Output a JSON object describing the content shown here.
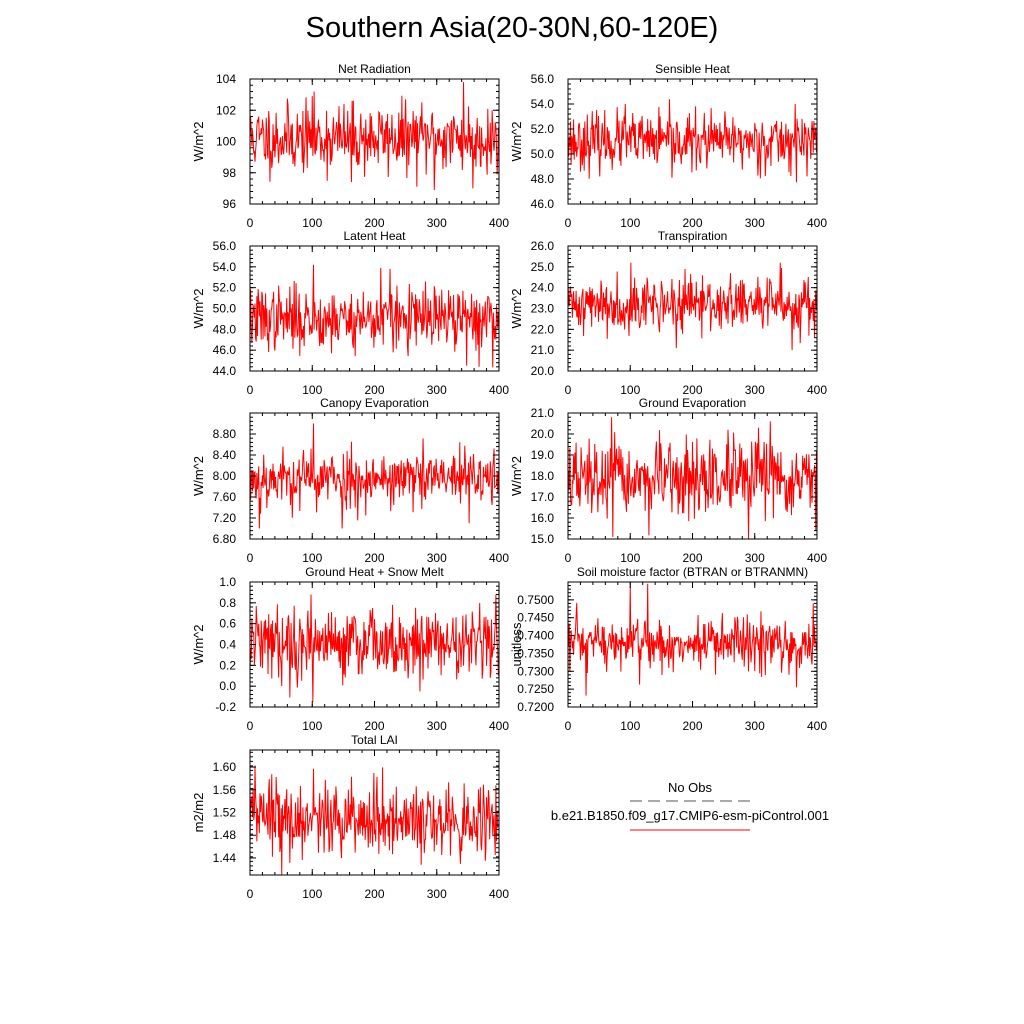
{
  "figure": {
    "title": "Southern Asia(20-30N,60-120E)",
    "legend": {
      "obs_label": "No Obs",
      "model_label": "b.e21.B1850.f09_g17.CMIP6-esm-piControl.001",
      "obs_color": "#555555",
      "model_color": "#ff0000"
    }
  },
  "chart_data": [
    {
      "type": "line",
      "title": "Net Radiation",
      "ylabel": "W/m^2",
      "xlim": [
        0,
        400
      ],
      "ylim": [
        96,
        104
      ],
      "yticks": [
        96,
        98,
        100,
        102,
        104
      ],
      "ytick_labels": [
        "96",
        "98",
        "100",
        "102",
        "104"
      ],
      "xticks": [
        0,
        100,
        200,
        300,
        400
      ],
      "xtick_labels": [
        "0",
        "100",
        "200",
        "300",
        "400"
      ],
      "series": [
        {
          "name": "b.e21.B1850.f09_g17.CMIP6-esm-piControl.001",
          "color": "#ff0000",
          "n": 400,
          "mean": 100.2,
          "std": 1.1,
          "seed": 11,
          "peaks": [
            [
              100,
              102.9
            ],
            [
              163,
              97.4
            ],
            [
              296,
              96.9
            ],
            [
              343,
              103.8
            ],
            [
              358,
              97.0
            ],
            [
              397,
              97.9
            ]
          ]
        }
      ]
    },
    {
      "type": "line",
      "title": "Sensible Heat",
      "ylabel": "W/m^2",
      "xlim": [
        0,
        400
      ],
      "ylim": [
        46,
        56
      ],
      "yticks": [
        46,
        48,
        50,
        52,
        54,
        56
      ],
      "ytick_labels": [
        "46.0",
        "48.0",
        "50.0",
        "52.0",
        "54.0",
        "56.0"
      ],
      "xticks": [
        0,
        100,
        200,
        300,
        400
      ],
      "xtick_labels": [
        "0",
        "100",
        "200",
        "300",
        "400"
      ],
      "series": [
        {
          "name": "b.e21.B1850.f09_g17.CMIP6-esm-piControl.001",
          "color": "#ff0000",
          "n": 400,
          "mean": 51.0,
          "std": 1.1,
          "seed": 23,
          "peaks": [
            [
              92,
              54.0
            ],
            [
              167,
              48.1
            ],
            [
              365,
              54.0
            ]
          ]
        }
      ]
    },
    {
      "type": "line",
      "title": "Latent Heat",
      "ylabel": "W/m^2",
      "xlim": [
        0,
        400
      ],
      "ylim": [
        44,
        56
      ],
      "yticks": [
        44,
        46,
        48,
        50,
        52,
        54,
        56
      ],
      "ytick_labels": [
        "44.0",
        "46.0",
        "48.0",
        "50.0",
        "52.0",
        "54.0",
        "56.0"
      ],
      "xticks": [
        0,
        100,
        200,
        300,
        400
      ],
      "xtick_labels": [
        "0",
        "100",
        "200",
        "300",
        "400"
      ],
      "series": [
        {
          "name": "b.e21.B1850.f09_g17.CMIP6-esm-piControl.001",
          "color": "#ff0000",
          "n": 400,
          "mean": 49.0,
          "std": 1.5,
          "seed": 37,
          "peaks": [
            [
              102,
              54.2
            ],
            [
              210,
              53.9
            ],
            [
              225,
              53.8
            ],
            [
              348,
              44.5
            ],
            [
              368,
              44.4
            ]
          ]
        }
      ]
    },
    {
      "type": "line",
      "title": "Transpiration",
      "ylabel": "W/m^2",
      "xlim": [
        0,
        400
      ],
      "ylim": [
        20,
        26
      ],
      "yticks": [
        20,
        21,
        22,
        23,
        24,
        25,
        26
      ],
      "ytick_labels": [
        "20.0",
        "21.0",
        "22.0",
        "23.0",
        "24.0",
        "25.0",
        "26.0"
      ],
      "xticks": [
        0,
        100,
        200,
        300,
        400
      ],
      "xtick_labels": [
        "0",
        "100",
        "200",
        "300",
        "400"
      ],
      "series": [
        {
          "name": "b.e21.B1850.f09_g17.CMIP6-esm-piControl.001",
          "color": "#ff0000",
          "n": 400,
          "mean": 23.2,
          "std": 0.65,
          "seed": 41,
          "peaks": [
            [
              101,
              25.2
            ],
            [
              174,
              21.1
            ],
            [
              341,
              25.2
            ],
            [
              360,
              21.0
            ]
          ]
        }
      ]
    },
    {
      "type": "line",
      "title": "Canopy Evaporation",
      "ylabel": "W/m^2",
      "xlim": [
        0,
        400
      ],
      "ylim": [
        6.8,
        9.2
      ],
      "yticks": [
        6.8,
        7.2,
        7.6,
        8.0,
        8.4,
        8.8
      ],
      "ytick_labels": [
        "6.80",
        "7.20",
        "7.60",
        "8.00",
        "8.40",
        "8.80"
      ],
      "xticks": [
        0,
        100,
        200,
        300,
        400
      ],
      "xtick_labels": [
        "0",
        "100",
        "200",
        "300",
        "400"
      ],
      "series": [
        {
          "name": "b.e21.B1850.f09_g17.CMIP6-esm-piControl.001",
          "color": "#ff0000",
          "n": 400,
          "mean": 7.95,
          "std": 0.28,
          "seed": 53,
          "peaks": [
            [
              15,
              7.0
            ],
            [
              102,
              9.0
            ],
            [
              148,
              7.0
            ],
            [
              352,
              7.1
            ]
          ]
        }
      ]
    },
    {
      "type": "line",
      "title": "Ground Evaporation",
      "ylabel": "W/m^2",
      "xlim": [
        0,
        400
      ],
      "ylim": [
        15,
        21
      ],
      "yticks": [
        15,
        16,
        17,
        18,
        19,
        20,
        21
      ],
      "ytick_labels": [
        "15.0",
        "16.0",
        "17.0",
        "18.0",
        "19.0",
        "20.0",
        "21.0"
      ],
      "xticks": [
        0,
        100,
        200,
        300,
        400
      ],
      "xtick_labels": [
        "0",
        "100",
        "200",
        "300",
        "400"
      ],
      "series": [
        {
          "name": "b.e21.B1850.f09_g17.CMIP6-esm-piControl.001",
          "color": "#ff0000",
          "n": 400,
          "mean": 17.8,
          "std": 0.9,
          "seed": 67,
          "peaks": [
            [
              70,
              20.8
            ],
            [
              72,
              15.1
            ],
            [
              290,
              15.0
            ],
            [
              325,
              20.6
            ],
            [
              398,
              15.4
            ]
          ]
        }
      ]
    },
    {
      "type": "line",
      "title": "Ground Heat + Snow Melt",
      "ylabel": "W/m^2",
      "xlim": [
        0,
        400
      ],
      "ylim": [
        -0.2,
        1.0
      ],
      "yticks": [
        -0.2,
        0,
        0.2,
        0.4,
        0.6,
        0.8,
        1.0
      ],
      "ytick_labels": [
        "-0.2",
        "0.0",
        "0.2",
        "0.4",
        "0.6",
        "0.8",
        "1.0"
      ],
      "xticks": [
        0,
        100,
        200,
        300,
        400
      ],
      "xtick_labels": [
        "0",
        "100",
        "200",
        "300",
        "400"
      ],
      "series": [
        {
          "name": "b.e21.B1850.f09_g17.CMIP6-esm-piControl.001",
          "color": "#ff0000",
          "n": 400,
          "mean": 0.42,
          "std": 0.17,
          "seed": 79,
          "peaks": [
            [
              101,
              -0.15
            ],
            [
              98,
              0.88
            ],
            [
              273,
              -0.05
            ],
            [
              395,
              0.88
            ]
          ]
        }
      ]
    },
    {
      "type": "line",
      "title": "Soil moisture factor (BTRAN or BTRANMN)",
      "ylabel": "unitless",
      "xlim": [
        0,
        400
      ],
      "ylim": [
        0.72,
        0.755
      ],
      "yticks": [
        0.72,
        0.725,
        0.73,
        0.735,
        0.74,
        0.745,
        0.75
      ],
      "ytick_labels": [
        "0.7200",
        "0.7250",
        "0.7300",
        "0.7350",
        "0.7400",
        "0.7450",
        "0.7500"
      ],
      "xticks": [
        0,
        100,
        200,
        300,
        400
      ],
      "xtick_labels": [
        "0",
        "100",
        "200",
        "300",
        "400"
      ],
      "series": [
        {
          "name": "b.e21.B1850.f09_g17.CMIP6-esm-piControl.001",
          "color": "#ff0000",
          "n": 400,
          "mean": 0.7375,
          "std": 0.0038,
          "seed": 97,
          "peaks": [
            [
              5,
              0.7415
            ],
            [
              29,
              0.7232
            ],
            [
              100,
              0.754
            ],
            [
              128,
              0.7545
            ],
            [
              367,
              0.7255
            ],
            [
              394,
              0.749
            ]
          ]
        }
      ]
    },
    {
      "type": "line",
      "title": "Total LAI",
      "ylabel": "m2/m2",
      "xlim": [
        0,
        400
      ],
      "ylim": [
        1.41,
        1.63
      ],
      "yticks": [
        1.44,
        1.48,
        1.52,
        1.56,
        1.6
      ],
      "ytick_labels": [
        "1.44",
        "1.48",
        "1.52",
        "1.56",
        "1.60"
      ],
      "xticks": [
        0,
        100,
        200,
        300,
        400
      ],
      "xtick_labels": [
        "0",
        "100",
        "200",
        "300",
        "400"
      ],
      "series": [
        {
          "name": "b.e21.B1850.f09_g17.CMIP6-esm-piControl.001",
          "color": "#ff0000",
          "n": 400,
          "mean": 1.508,
          "std": 0.033,
          "seed": 113,
          "peaks": [
            [
              102,
              1.597
            ],
            [
              275,
              1.428
            ],
            [
              378,
              1.435
            ],
            [
              395,
              1.568
            ]
          ]
        }
      ]
    }
  ]
}
